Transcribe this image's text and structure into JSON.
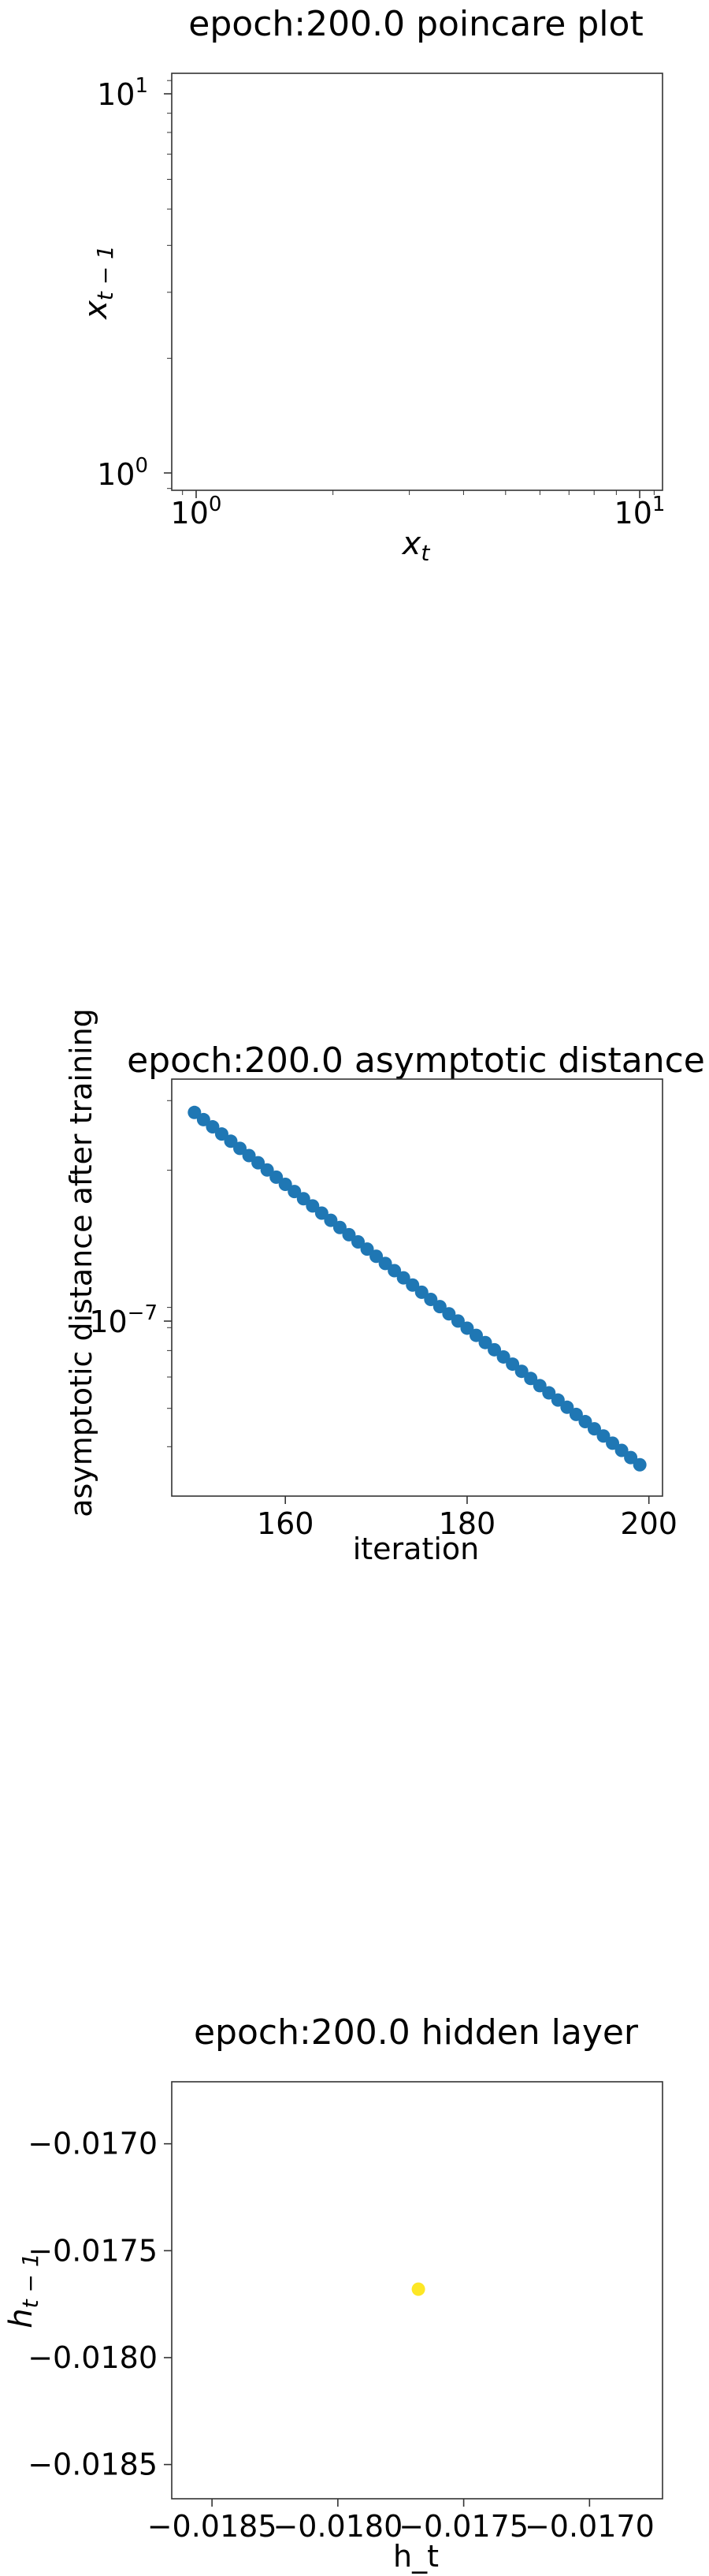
{
  "chart_data": [
    {
      "type": "scatter",
      "title": "epoch:200.0 poincare plot",
      "xlabel": "x_t",
      "ylabel": "x_{t-1}",
      "xscale": "log",
      "yscale": "log",
      "xlim": [
        0.85,
        11.5
      ],
      "ylim": [
        0.89,
        11.5
      ],
      "xtick_labels": [
        {
          "value": 1,
          "base": "10",
          "exp": "0"
        },
        {
          "value": 10,
          "base": "10",
          "exp": "1"
        }
      ],
      "ytick_labels": [
        {
          "value": 1,
          "base": "10",
          "exp": "0"
        },
        {
          "value": 10,
          "base": "10",
          "exp": "1"
        }
      ],
      "x": [],
      "y": [],
      "grid": false
    },
    {
      "type": "scatter",
      "title": "epoch:200.0 asymptotic distance",
      "xlabel": "iteration",
      "ylabel": "asymptotic distance after training",
      "yscale": "log",
      "xlim": [
        147.5,
        201.5
      ],
      "ylim": [
        3e-08,
        3.4e-07
      ],
      "xticks": [
        160,
        180,
        200
      ],
      "xtick_labels": [
        "160",
        "180",
        "200"
      ],
      "ytick_labels": [
        {
          "value": 1e-07,
          "base": "10",
          "exp": "−7"
        }
      ],
      "x_start": 150,
      "x_end": 199,
      "y_start": 2.8e-07,
      "y_end": 3.6e-08,
      "color": "#1f77b4",
      "grid": false
    },
    {
      "type": "scatter",
      "title": "epoch:200.0 hidden layer",
      "xlabel": "h_t",
      "ylabel": "h_{t-1}",
      "xlim": [
        -0.01866,
        -0.01671
      ],
      "ylim": [
        -0.01866,
        -0.01671
      ],
      "xticks": [
        -0.0185,
        -0.018,
        -0.0175,
        -0.017
      ],
      "xtick_labels": [
        "−0.0185",
        "−0.0180",
        "−0.0175",
        "−0.0170"
      ],
      "yticks": [
        -0.017,
        -0.0175,
        -0.018,
        -0.0185
      ],
      "ytick_labels": [
        "−0.0170",
        "−0.0175",
        "−0.0180",
        "−0.0185"
      ],
      "x": [
        -0.01768
      ],
      "y": [
        -0.01768
      ],
      "color": "#fde725",
      "grid": false
    }
  ]
}
